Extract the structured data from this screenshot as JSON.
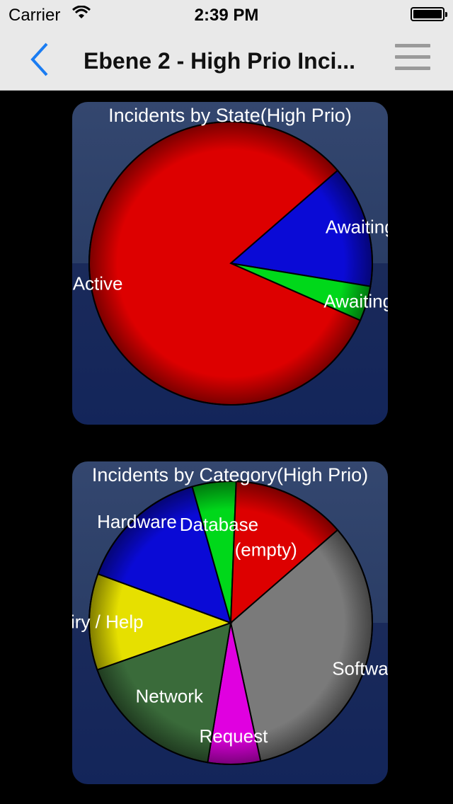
{
  "status": {
    "carrier": "Carrier",
    "time": "2:39 PM"
  },
  "nav": {
    "title": "Ebene 2 - High Prio Inci..."
  },
  "icons": {
    "back": "chevron-left-icon",
    "menu": "hamburger-menu-icon",
    "wifi": "wifi-icon",
    "battery": "battery-icon"
  },
  "colors": {
    "accent": "#1a7cf2",
    "card_top": "#34476f",
    "card_bottom": "#13255a"
  },
  "chart_data": [
    {
      "type": "pie",
      "title": "Incidents by State(High Prio)",
      "slices": [
        {
          "label": "Awaiting",
          "value": 14,
          "color": "#0a0ad6"
        },
        {
          "label": "Awaiting",
          "value": 4,
          "color": "#00d81a"
        },
        {
          "label": "Active",
          "value": 82,
          "color": "#dd0000"
        }
      ]
    },
    {
      "type": "pie",
      "title": "Incidents by Category(High Prio)",
      "slices": [
        {
          "label": "Software",
          "value": 33,
          "color": "#7a7a7a"
        },
        {
          "label": "Request",
          "value": 6,
          "color": "#e000e0"
        },
        {
          "label": "Network",
          "value": 17,
          "color": "#3a6b3a"
        },
        {
          "label": "Inquiry / Help",
          "value": 11,
          "color": "#e6e000"
        },
        {
          "label": "Hardware",
          "value": 15,
          "color": "#0a0ad6"
        },
        {
          "label": "Database",
          "value": 5,
          "color": "#00d81a"
        },
        {
          "label": "(empty)",
          "value": 13,
          "color": "#dd0000"
        }
      ]
    }
  ]
}
